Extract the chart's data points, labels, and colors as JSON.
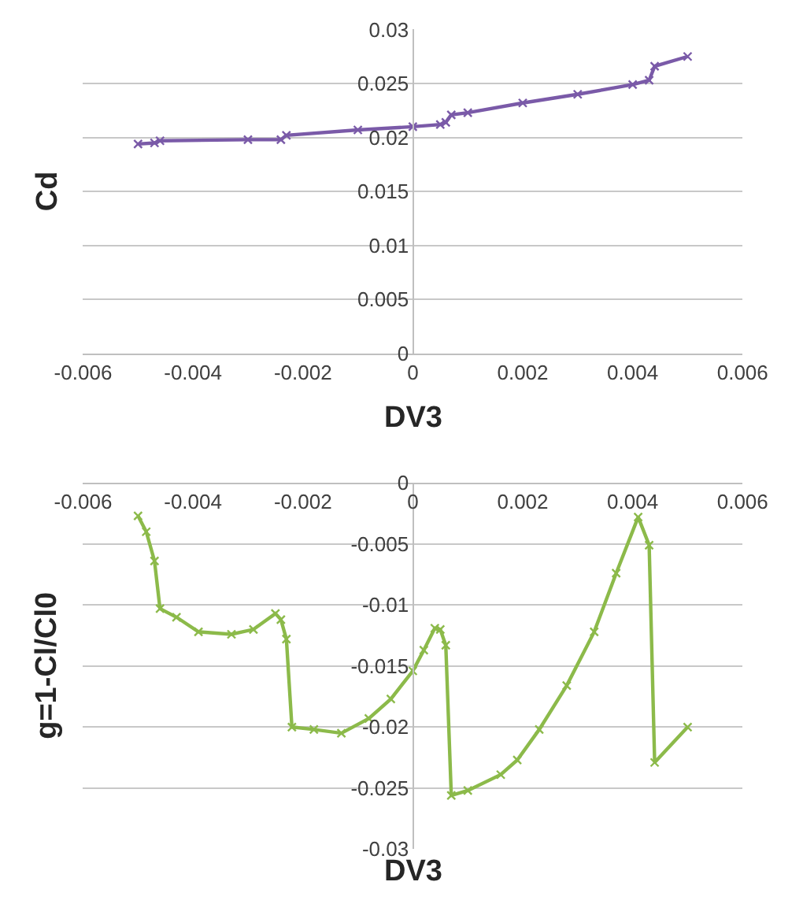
{
  "chart_data": [
    {
      "type": "line",
      "xlabel": "DV3",
      "ylabel": "Cd",
      "grid": "y",
      "marker": "cross",
      "line_style": "solid",
      "xlim": [
        -0.006,
        0.006
      ],
      "xticks": [
        -0.006,
        -0.004,
        -0.002,
        0,
        0.002,
        0.004,
        0.006
      ],
      "ylim": [
        0,
        0.03
      ],
      "yticks": [
        0,
        0.005,
        0.01,
        0.015,
        0.02,
        0.025,
        0.03
      ],
      "series": [
        {
          "color": "#7a5aa8",
          "x": [
            -0.005,
            -0.0047,
            -0.0046,
            -0.003,
            -0.0024,
            -0.0023,
            -0.001,
            0,
            0.0005,
            0.0006,
            0.0007,
            0.001,
            0.002,
            0.003,
            0.004,
            0.0043,
            0.0044,
            0.005
          ],
          "values": [
            0.0194,
            0.0195,
            0.0197,
            0.0198,
            0.0198,
            0.0202,
            0.0207,
            0.021,
            0.0212,
            0.0214,
            0.0221,
            0.0223,
            0.0232,
            0.024,
            0.0249,
            0.0253,
            0.0266,
            0.0275
          ]
        }
      ]
    },
    {
      "type": "line",
      "xlabel": "DV3",
      "ylabel": "g=1-Cl/Cl0",
      "grid": "y",
      "marker": "cross",
      "line_style": "solid",
      "xlim": [
        -0.006,
        0.006
      ],
      "xticks": [
        -0.006,
        -0.004,
        -0.002,
        0,
        0.002,
        0.004,
        0.006
      ],
      "ylim": [
        -0.03,
        0
      ],
      "yticks": [
        -0.03,
        -0.025,
        -0.02,
        -0.015,
        -0.01,
        -0.005,
        0
      ],
      "series": [
        {
          "color": "#8cba4a",
          "x": [
            -0.005,
            -0.00485,
            -0.0047,
            -0.0046,
            -0.0043,
            -0.0039,
            -0.0033,
            -0.0029,
            -0.0025,
            -0.0024,
            -0.0023,
            -0.0022,
            -0.0018,
            -0.0013,
            -0.0008,
            -0.0004,
            0,
            0.0002,
            0.0004,
            0.0005,
            0.0006,
            0.0007,
            0.001,
            0.0016,
            0.0019,
            0.0023,
            0.0028,
            0.0033,
            0.0037,
            0.0041,
            0.0043,
            0.0044,
            0.005
          ],
          "values": [
            -0.0027,
            -0.004,
            -0.0064,
            -0.0103,
            -0.011,
            -0.0122,
            -0.0124,
            -0.012,
            -0.0107,
            -0.0112,
            -0.0128,
            -0.02,
            -0.0202,
            -0.0205,
            -0.0193,
            -0.0177,
            -0.0154,
            -0.0137,
            -0.0119,
            -0.012,
            -0.0133,
            -0.0256,
            -0.0252,
            -0.0239,
            -0.0227,
            -0.0202,
            -0.0166,
            -0.0122,
            -0.0074,
            -0.0028,
            -0.0051,
            -0.0229,
            -0.02
          ]
        }
      ]
    }
  ]
}
